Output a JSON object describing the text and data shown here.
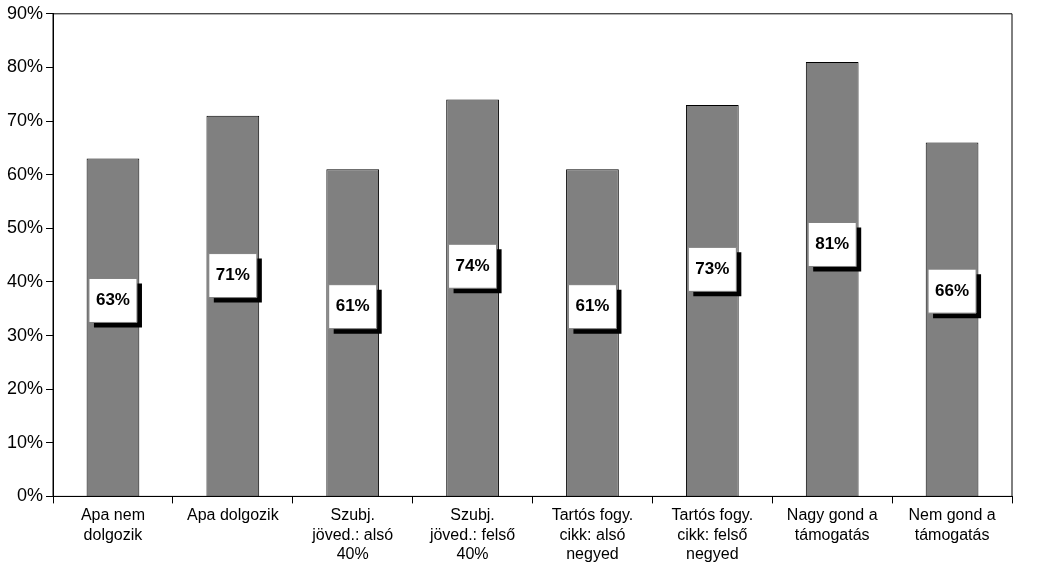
{
  "chart_data": {
    "type": "bar",
    "categories": [
      "Apa nem dolgozik",
      "Apa dolgozik",
      "Szubj. jöved.: alsó 40%",
      "Szubj. jöved.: felső 40%",
      "Tartós fogy. cikk: alsó negyed",
      "Tartós fogy. cikk: felső negyed",
      "Nagy gond a támogatás",
      "Nem gond a támogatás"
    ],
    "values": [
      63,
      71,
      61,
      74,
      61,
      73,
      81,
      66
    ],
    "value_labels": [
      "63%",
      "71%",
      "61%",
      "74%",
      "61%",
      "73%",
      "81%",
      "66%"
    ],
    "color": "#808080",
    "ylim": [
      0,
      90
    ],
    "yticks": [
      {
        "value": 0,
        "label": "0%"
      },
      {
        "value": 10,
        "label": "10%"
      },
      {
        "value": 20,
        "label": "20%"
      },
      {
        "value": 30,
        "label": "30%"
      },
      {
        "value": 40,
        "label": "40%"
      },
      {
        "value": 50,
        "label": "50%"
      },
      {
        "value": 60,
        "label": "60%"
      },
      {
        "value": 70,
        "label": "70%"
      },
      {
        "value": 80,
        "label": "80%"
      },
      {
        "value": 90,
        "label": "90%"
      }
    ],
    "grid": false,
    "legend": false
  }
}
